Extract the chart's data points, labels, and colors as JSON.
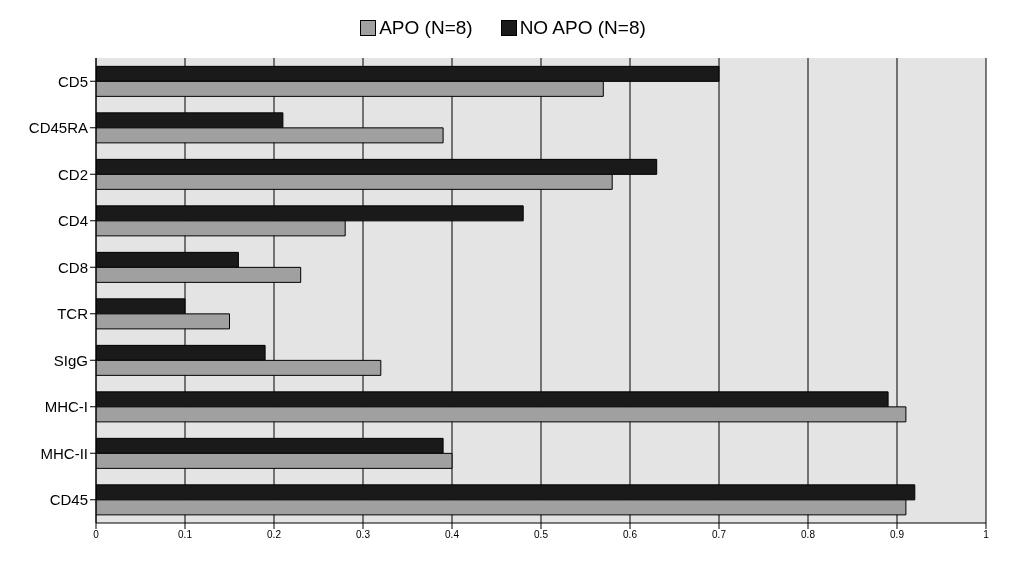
{
  "chart_data": {
    "type": "bar",
    "orientation": "horizontal",
    "categories": [
      "CD5",
      "CD45RA",
      "CD2",
      "CD4",
      "CD8",
      "TCR",
      "SIgG",
      "MHC-I",
      "MHC-II",
      "CD45"
    ],
    "series": [
      {
        "name": "APO (N=8)",
        "color": "#a0a0a0",
        "values": [
          0.57,
          0.39,
          0.58,
          0.28,
          0.23,
          0.15,
          0.32,
          0.91,
          0.4,
          0.91
        ]
      },
      {
        "name": "NO APO (N=8)",
        "color": "#1a1a1a",
        "values": [
          0.7,
          0.21,
          0.63,
          0.48,
          0.16,
          0.1,
          0.19,
          0.89,
          0.39,
          0.92
        ]
      }
    ],
    "xlim": [
      0,
      1
    ],
    "xticks": [
      0,
      0.1,
      0.2,
      0.3,
      0.4,
      0.5,
      0.6,
      0.7,
      0.8,
      0.9,
      1
    ],
    "grid": "x",
    "legend": "top"
  }
}
